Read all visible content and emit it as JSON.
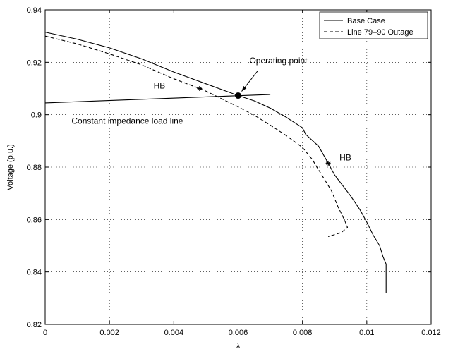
{
  "chart_data": {
    "type": "line",
    "title": "",
    "xlabel": "λ",
    "ylabel": "Voltage (p.u.)",
    "xlim": [
      0,
      0.012
    ],
    "ylim": [
      0.82,
      0.94
    ],
    "xticks": [
      0,
      0.002,
      0.004,
      0.006,
      0.008,
      0.01,
      0.012
    ],
    "xtick_labels": [
      "0",
      "0.002",
      "0.004",
      "0.006",
      "0.008",
      "0.01",
      "0.012"
    ],
    "yticks": [
      0.82,
      0.84,
      0.86,
      0.88,
      0.9,
      0.92,
      0.94
    ],
    "ytick_labels": [
      "0.82",
      "0.84",
      "0.86",
      "0.88",
      "0.9",
      "0.92",
      "0.94"
    ],
    "grid": true,
    "legend_position": "top-right",
    "series": [
      {
        "name": "Base Case",
        "style": "solid",
        "color": "#000000",
        "points": [
          [
            0,
            0.9315
          ],
          [
            0.001,
            0.9288
          ],
          [
            0.002,
            0.9255
          ],
          [
            0.003,
            0.9213
          ],
          [
            0.004,
            0.9163
          ],
          [
            0.005,
            0.9118
          ],
          [
            0.006,
            0.9073
          ],
          [
            0.0065,
            0.9053
          ],
          [
            0.007,
            0.9025
          ],
          [
            0.0075,
            0.899
          ],
          [
            0.008,
            0.895
          ],
          [
            0.0081,
            0.8925
          ],
          [
            0.0085,
            0.888
          ],
          [
            0.0088,
            0.8815
          ],
          [
            0.009,
            0.877
          ],
          [
            0.0095,
            0.869
          ],
          [
            0.0098,
            0.8635
          ],
          [
            0.01,
            0.859
          ],
          [
            0.0102,
            0.854
          ],
          [
            0.0104,
            0.85
          ],
          [
            0.0105,
            0.846
          ],
          [
            0.0106,
            0.843
          ],
          [
            0.0106,
            0.832
          ]
        ]
      },
      {
        "name": "Line 79–90 Outage",
        "style": "dashed",
        "color": "#000000",
        "points": [
          [
            0,
            0.93
          ],
          [
            0.001,
            0.927
          ],
          [
            0.002,
            0.9232
          ],
          [
            0.003,
            0.919
          ],
          [
            0.004,
            0.9137
          ],
          [
            0.0048,
            0.91
          ],
          [
            0.005,
            0.909
          ],
          [
            0.006,
            0.903
          ],
          [
            0.0065,
            0.8998
          ],
          [
            0.007,
            0.896
          ],
          [
            0.0075,
            0.892
          ],
          [
            0.008,
            0.8875
          ],
          [
            0.0083,
            0.883
          ],
          [
            0.0086,
            0.877
          ],
          [
            0.0089,
            0.871
          ],
          [
            0.0091,
            0.865
          ],
          [
            0.0093,
            0.86
          ],
          [
            0.0094,
            0.857
          ],
          [
            0.0092,
            0.855
          ],
          [
            0.0088,
            0.8535
          ]
        ]
      },
      {
        "name": "Constant impedance load line",
        "style": "solid",
        "color": "#000000",
        "points": [
          [
            0,
            0.9045
          ],
          [
            0.007,
            0.9077
          ]
        ]
      }
    ],
    "markers": [
      {
        "label": "Operating point",
        "x": 0.006,
        "y": 0.9073,
        "shape": "filled-circle"
      },
      {
        "label": "HB",
        "x": 0.0048,
        "y": 0.91,
        "shape": "asterisk"
      },
      {
        "label": "HB",
        "x": 0.0088,
        "y": 0.8815,
        "shape": "asterisk"
      }
    ],
    "annotations": [
      {
        "text": "Operating point",
        "x": 0.00635,
        "y": 0.9195
      },
      {
        "text": "HB",
        "x": 0.00337,
        "y": 0.91
      },
      {
        "text": "HB",
        "x": 0.00915,
        "y": 0.8825
      },
      {
        "text": "Constant impedance load line",
        "x": 0.00082,
        "y": 0.8965
      }
    ]
  }
}
